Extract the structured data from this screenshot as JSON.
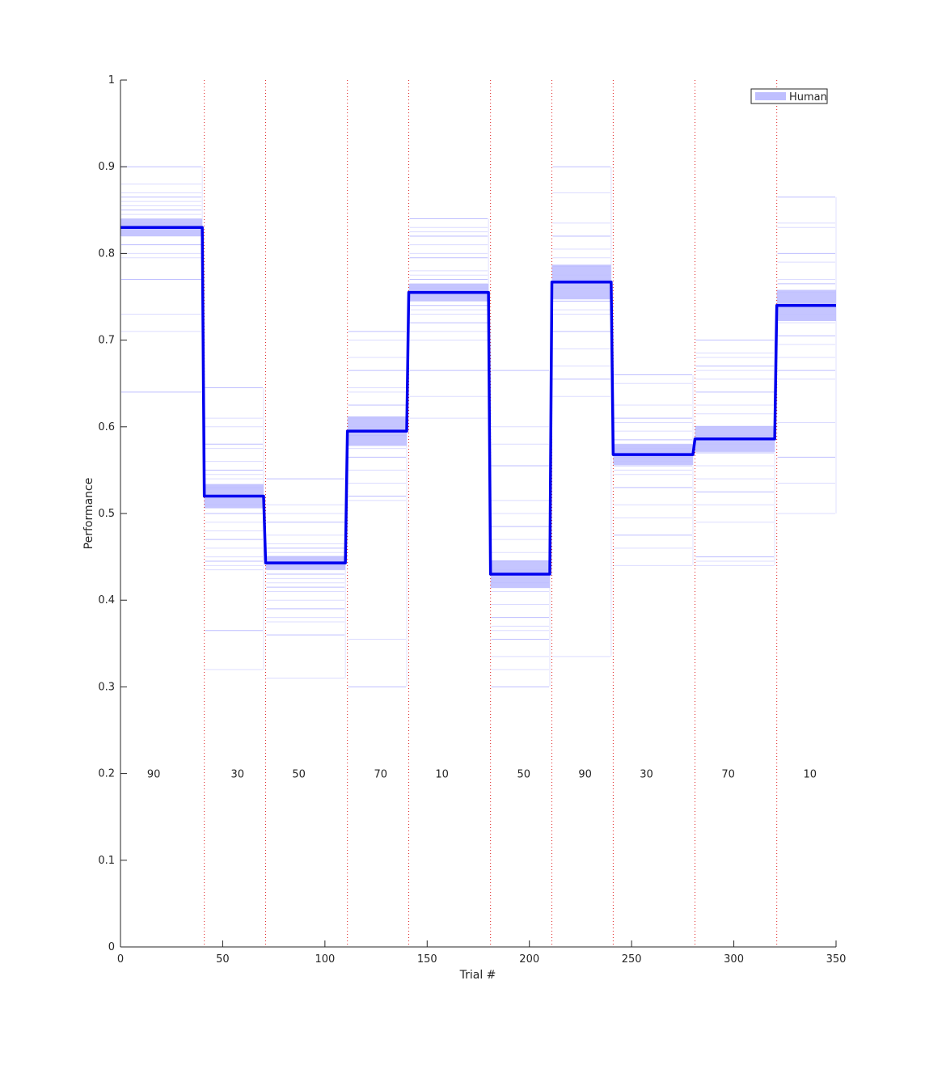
{
  "chart_data": {
    "type": "line",
    "title": "",
    "xlabel": "Trial #",
    "ylabel": "Performance",
    "xlim": [
      0,
      350
    ],
    "ylim": [
      0,
      1
    ],
    "xticks": [
      0,
      50,
      100,
      150,
      200,
      250,
      300,
      350
    ],
    "yticks": [
      0,
      0.1,
      0.2,
      0.3,
      0.4,
      0.5,
      0.6,
      0.7,
      0.8,
      0.9,
      1
    ],
    "xtick_labels": [
      "0",
      "50",
      "100",
      "150",
      "200",
      "250",
      "300",
      "350"
    ],
    "ytick_labels": [
      "0",
      "0.1",
      "0.2",
      "0.3",
      "0.4",
      "0.5",
      "0.6",
      "0.7",
      "0.8",
      "0.9",
      "1"
    ],
    "grid": false,
    "legend": {
      "position": "top-right",
      "entries": [
        "Human"
      ]
    },
    "block_boundaries": [
      41,
      71,
      111,
      141,
      181,
      211,
      241,
      281,
      321
    ],
    "block_label_y": 0.2,
    "blocks": [
      {
        "start": 0,
        "end": 40,
        "label": "90",
        "label_x": 13,
        "mean": 0.83,
        "sem": 0.01,
        "individuals": [
          0.9,
          0.88,
          0.87,
          0.865,
          0.86,
          0.855,
          0.85,
          0.845,
          0.84,
          0.835,
          0.83,
          0.82,
          0.81,
          0.8,
          0.795,
          0.77,
          0.73,
          0.71,
          0.64
        ]
      },
      {
        "start": 41,
        "end": 70,
        "label": "30",
        "label_x": 54,
        "mean": 0.52,
        "sem": 0.014,
        "individuals": [
          0.645,
          0.61,
          0.6,
          0.58,
          0.575,
          0.56,
          0.55,
          0.545,
          0.54,
          0.53,
          0.52,
          0.51,
          0.5,
          0.49,
          0.48,
          0.47,
          0.46,
          0.45,
          0.445,
          0.44,
          0.435,
          0.365,
          0.32
        ]
      },
      {
        "start": 71,
        "end": 110,
        "label": "50",
        "label_x": 84,
        "mean": 0.443,
        "sem": 0.008,
        "individuals": [
          0.54,
          0.51,
          0.5,
          0.49,
          0.475,
          0.465,
          0.46,
          0.455,
          0.45,
          0.445,
          0.44,
          0.435,
          0.43,
          0.425,
          0.42,
          0.415,
          0.41,
          0.4,
          0.39,
          0.38,
          0.375,
          0.36,
          0.31
        ]
      },
      {
        "start": 111,
        "end": 140,
        "label": "70",
        "label_x": 124,
        "mean": 0.595,
        "sem": 0.017,
        "individuals": [
          0.71,
          0.7,
          0.68,
          0.665,
          0.645,
          0.64,
          0.625,
          0.61,
          0.6,
          0.59,
          0.58,
          0.575,
          0.565,
          0.55,
          0.535,
          0.52,
          0.515,
          0.355,
          0.3
        ]
      },
      {
        "start": 141,
        "end": 180,
        "label": "10",
        "label_x": 154,
        "mean": 0.755,
        "sem": 0.01,
        "individuals": [
          0.84,
          0.83,
          0.825,
          0.82,
          0.81,
          0.8,
          0.795,
          0.78,
          0.775,
          0.77,
          0.765,
          0.76,
          0.755,
          0.75,
          0.745,
          0.74,
          0.735,
          0.73,
          0.72,
          0.71,
          0.7,
          0.665,
          0.635,
          0.61
        ]
      },
      {
        "start": 181,
        "end": 210,
        "label": "50",
        "label_x": 194,
        "mean": 0.43,
        "sem": 0.016,
        "individuals": [
          0.665,
          0.6,
          0.58,
          0.555,
          0.515,
          0.5,
          0.485,
          0.47,
          0.455,
          0.445,
          0.435,
          0.43,
          0.42,
          0.41,
          0.395,
          0.38,
          0.37,
          0.365,
          0.355,
          0.335,
          0.32,
          0.3
        ]
      },
      {
        "start": 211,
        "end": 240,
        "label": "90",
        "label_x": 224,
        "mean": 0.767,
        "sem": 0.02,
        "individuals": [
          0.9,
          0.87,
          0.835,
          0.82,
          0.805,
          0.795,
          0.785,
          0.775,
          0.77,
          0.765,
          0.76,
          0.75,
          0.745,
          0.735,
          0.73,
          0.71,
          0.69,
          0.67,
          0.655,
          0.635,
          0.335
        ]
      },
      {
        "start": 241,
        "end": 280,
        "label": "30",
        "label_x": 254,
        "mean": 0.568,
        "sem": 0.012,
        "individuals": [
          0.66,
          0.65,
          0.625,
          0.61,
          0.605,
          0.595,
          0.585,
          0.58,
          0.575,
          0.57,
          0.565,
          0.56,
          0.555,
          0.55,
          0.545,
          0.53,
          0.51,
          0.495,
          0.475,
          0.46,
          0.44
        ]
      },
      {
        "start": 281,
        "end": 320,
        "label": "70",
        "label_x": 294,
        "mean": 0.586,
        "sem": 0.015,
        "individuals": [
          0.7,
          0.685,
          0.68,
          0.67,
          0.665,
          0.655,
          0.64,
          0.625,
          0.615,
          0.6,
          0.59,
          0.58,
          0.57,
          0.555,
          0.54,
          0.525,
          0.51,
          0.49,
          0.45,
          0.445,
          0.44
        ]
      },
      {
        "start": 321,
        "end": 350,
        "label": "10",
        "label_x": 334,
        "mean": 0.74,
        "sem": 0.018,
        "individuals": [
          0.865,
          0.835,
          0.83,
          0.8,
          0.79,
          0.77,
          0.765,
          0.755,
          0.745,
          0.74,
          0.73,
          0.72,
          0.705,
          0.695,
          0.68,
          0.665,
          0.655,
          0.605,
          0.565,
          0.535,
          0.5
        ]
      }
    ]
  },
  "colors": {
    "mean_line": "#0000ee",
    "sem_band": "#bfbfff",
    "individual": "#8a8aff",
    "boundary": "#e02020",
    "axis": "#262626",
    "text": "#262626"
  }
}
